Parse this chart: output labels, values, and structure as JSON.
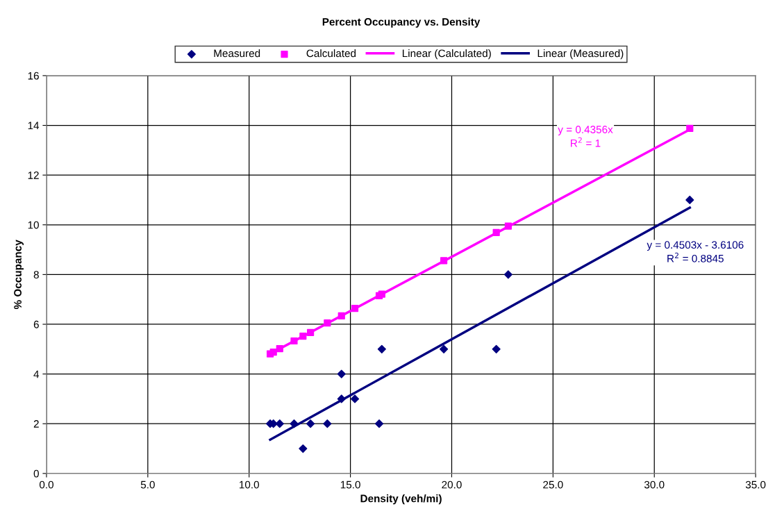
{
  "chart_data": {
    "type": "scatter",
    "title": "Percent Occupancy vs. Density",
    "xlabel": "Density (veh/mi)",
    "ylabel": "% Occupancy",
    "series": [
      {
        "name": "Measured",
        "color": "#000080",
        "marker": "diamond",
        "x": [
          11.04,
          11.2,
          11.51,
          12.22,
          12.66,
          13.03,
          13.86,
          14.56,
          14.56,
          15.22,
          16.42,
          16.55,
          19.61,
          22.2,
          22.79,
          31.75
        ],
        "values": [
          2,
          2,
          2,
          2,
          1,
          2,
          2,
          4,
          3,
          3,
          2,
          5,
          5,
          5,
          8,
          11
        ]
      },
      {
        "name": "Calculated",
        "color": "#ff00ff",
        "marker": "square",
        "x": [
          11.04,
          11.2,
          11.51,
          12.22,
          12.66,
          13.03,
          13.86,
          14.56,
          15.22,
          16.42,
          16.55,
          19.61,
          22.2,
          22.79,
          31.75
        ],
        "values": [
          4.81,
          4.88,
          5.02,
          5.33,
          5.52,
          5.67,
          6.05,
          6.34,
          6.64,
          7.15,
          7.21,
          8.56,
          9.69,
          9.95,
          13.88
        ]
      },
      {
        "name": "Linear (Calculated)",
        "type": "line",
        "color": "#ff00ff",
        "x": [
          11.04,
          31.75
        ],
        "values": [
          4.81,
          13.83
        ]
      },
      {
        "name": "Linear (Measured)",
        "type": "line",
        "color": "#000080",
        "x": [
          11.04,
          31.75
        ],
        "values": [
          1.36,
          10.69
        ]
      }
    ],
    "annotations": [
      "y = 0.4356x\nR$^{2}$ = 1",
      "y = 0.4503x - 3.6106\nR$^{2}$ = 0.8845"
    ],
    "xlim": [
      0,
      35
    ],
    "xticks": [
      {
        "value": 0,
        "label": "0.0"
      },
      {
        "value": 5,
        "label": "5.0"
      },
      {
        "value": 10,
        "label": "10.0"
      },
      {
        "value": 15,
        "label": "15.0"
      },
      {
        "value": 20,
        "label": "20.0"
      },
      {
        "value": 25,
        "label": "25.0"
      },
      {
        "value": 30,
        "label": "30.0"
      },
      {
        "value": 35,
        "label": "35.0"
      }
    ],
    "ylim": [
      0,
      16
    ],
    "yticks": [
      0,
      2,
      4,
      6,
      8,
      10,
      12,
      14,
      16
    ],
    "grid": true,
    "legend": "top"
  }
}
